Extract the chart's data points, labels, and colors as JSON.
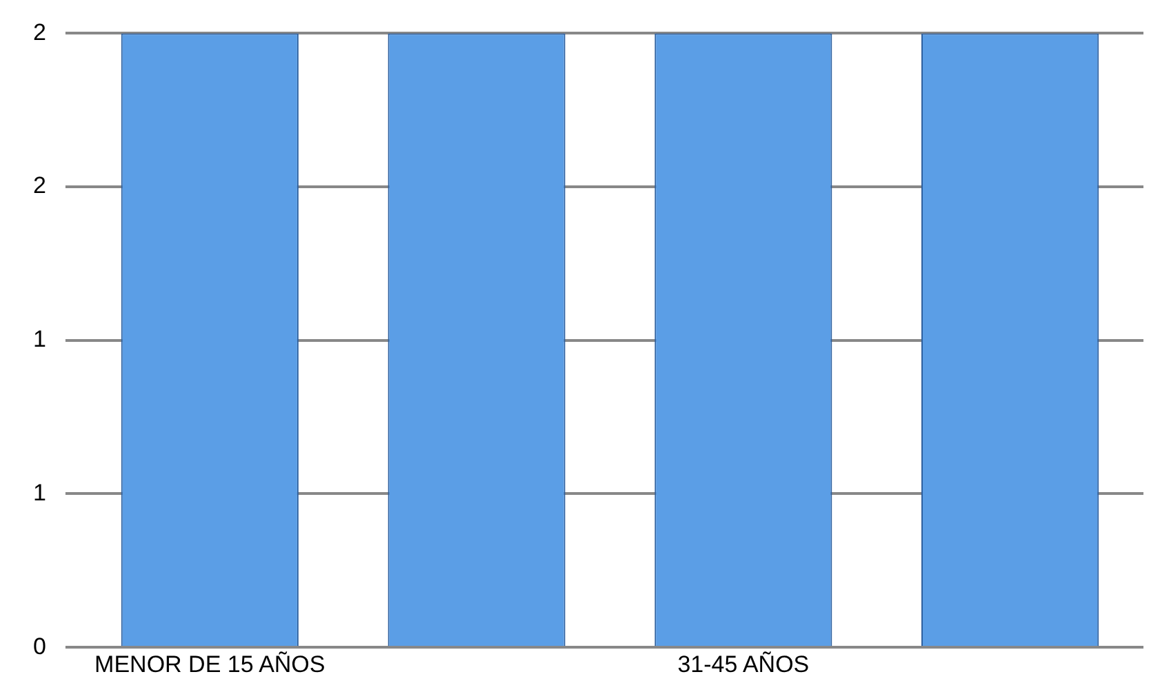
{
  "chart_data": {
    "type": "bar",
    "categories": [
      "MENOR DE 15 AÑOS",
      null,
      "31-45 AÑOS",
      null
    ],
    "values": [
      2,
      2,
      2,
      2
    ],
    "color": "#5b9ee6",
    "ylim": [
      0,
      2
    ],
    "yticks": [
      {
        "value": 0,
        "label": "0"
      },
      {
        "value": 0.5,
        "label": "1"
      },
      {
        "value": 1,
        "label": "1"
      },
      {
        "value": 1.5,
        "label": "2"
      },
      {
        "value": 2,
        "label": "2"
      }
    ],
    "grid": "y",
    "legend": false
  }
}
